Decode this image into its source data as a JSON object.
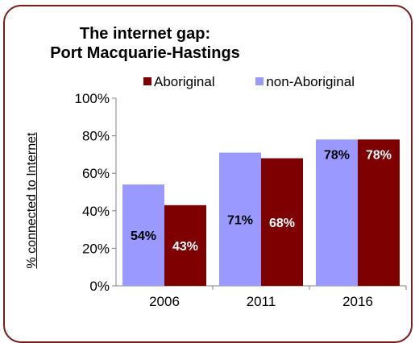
{
  "chart_data": {
    "type": "bar",
    "title": [
      "The internet gap:",
      "Port Macquarie-Hastings"
    ],
    "ylabel": "% connected to Internet",
    "xlabel": "",
    "categories": [
      "2006",
      "2011",
      "2016"
    ],
    "series": [
      {
        "name": "non-Aboriginal",
        "color": "#9999ff",
        "values": [
          54,
          71,
          78
        ],
        "labels": [
          "54%",
          "71%",
          "78%"
        ]
      },
      {
        "name": "Aboriginal",
        "color": "#7f0000",
        "values": [
          43,
          68,
          78
        ],
        "labels": [
          "43%",
          "68%",
          "78%"
        ]
      }
    ],
    "legend_order": [
      "Aboriginal",
      "non-Aboriginal"
    ],
    "legend_position": "top",
    "ylim": [
      0,
      100
    ],
    "yticks": [
      0,
      20,
      40,
      60,
      80,
      100
    ],
    "ytick_labels": [
      "0%",
      "20%",
      "40%",
      "60%",
      "80%",
      "100%"
    ],
    "grid": false,
    "colors": {
      "frame": "#7a1b1b",
      "axis": "#808080"
    }
  }
}
